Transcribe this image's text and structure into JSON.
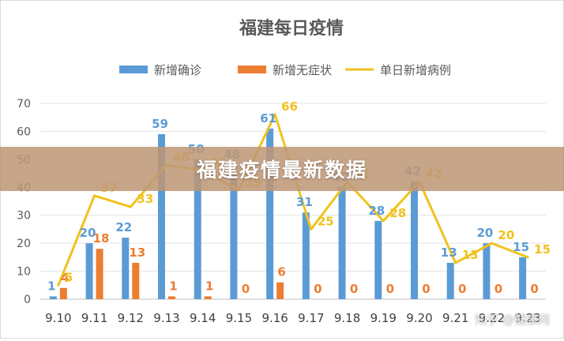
{
  "chart_data": {
    "type": "bar",
    "title": "福建每日疫情",
    "categories": [
      "9.10",
      "9.11",
      "9.12",
      "9.13",
      "9.14",
      "9.15",
      "9.16",
      "9.17",
      "9.18",
      "9.19",
      "9.20",
      "9.21",
      "9.22",
      "9.23"
    ],
    "series": [
      {
        "name": "新增确诊",
        "type": "bar",
        "color": "#5b9bd5",
        "values": [
          1,
          20,
          22,
          59,
          50,
          48,
          61,
          31,
          40,
          28,
          42,
          13,
          20,
          15
        ]
      },
      {
        "name": "新增无症状",
        "type": "bar",
        "color": "#ed7d31",
        "values": [
          4,
          18,
          13,
          1,
          1,
          0,
          6,
          0,
          0,
          0,
          0,
          0,
          0,
          0
        ]
      },
      {
        "name": "单日新增病例",
        "type": "line",
        "color": "#f0c21c",
        "values": [
          5,
          37,
          33,
          48,
          46,
          39,
          66,
          25,
          42,
          28,
          42,
          13,
          20,
          15
        ]
      }
    ],
    "ylim": [
      0,
      70
    ],
    "yticks": [
      0,
      10,
      20,
      30,
      40,
      50,
      60,
      70
    ],
    "legend": "top",
    "grid": true
  },
  "banner": {
    "text": "福建疫情最新数据"
  },
  "watermark": {
    "text": "知乎 @健康网"
  }
}
